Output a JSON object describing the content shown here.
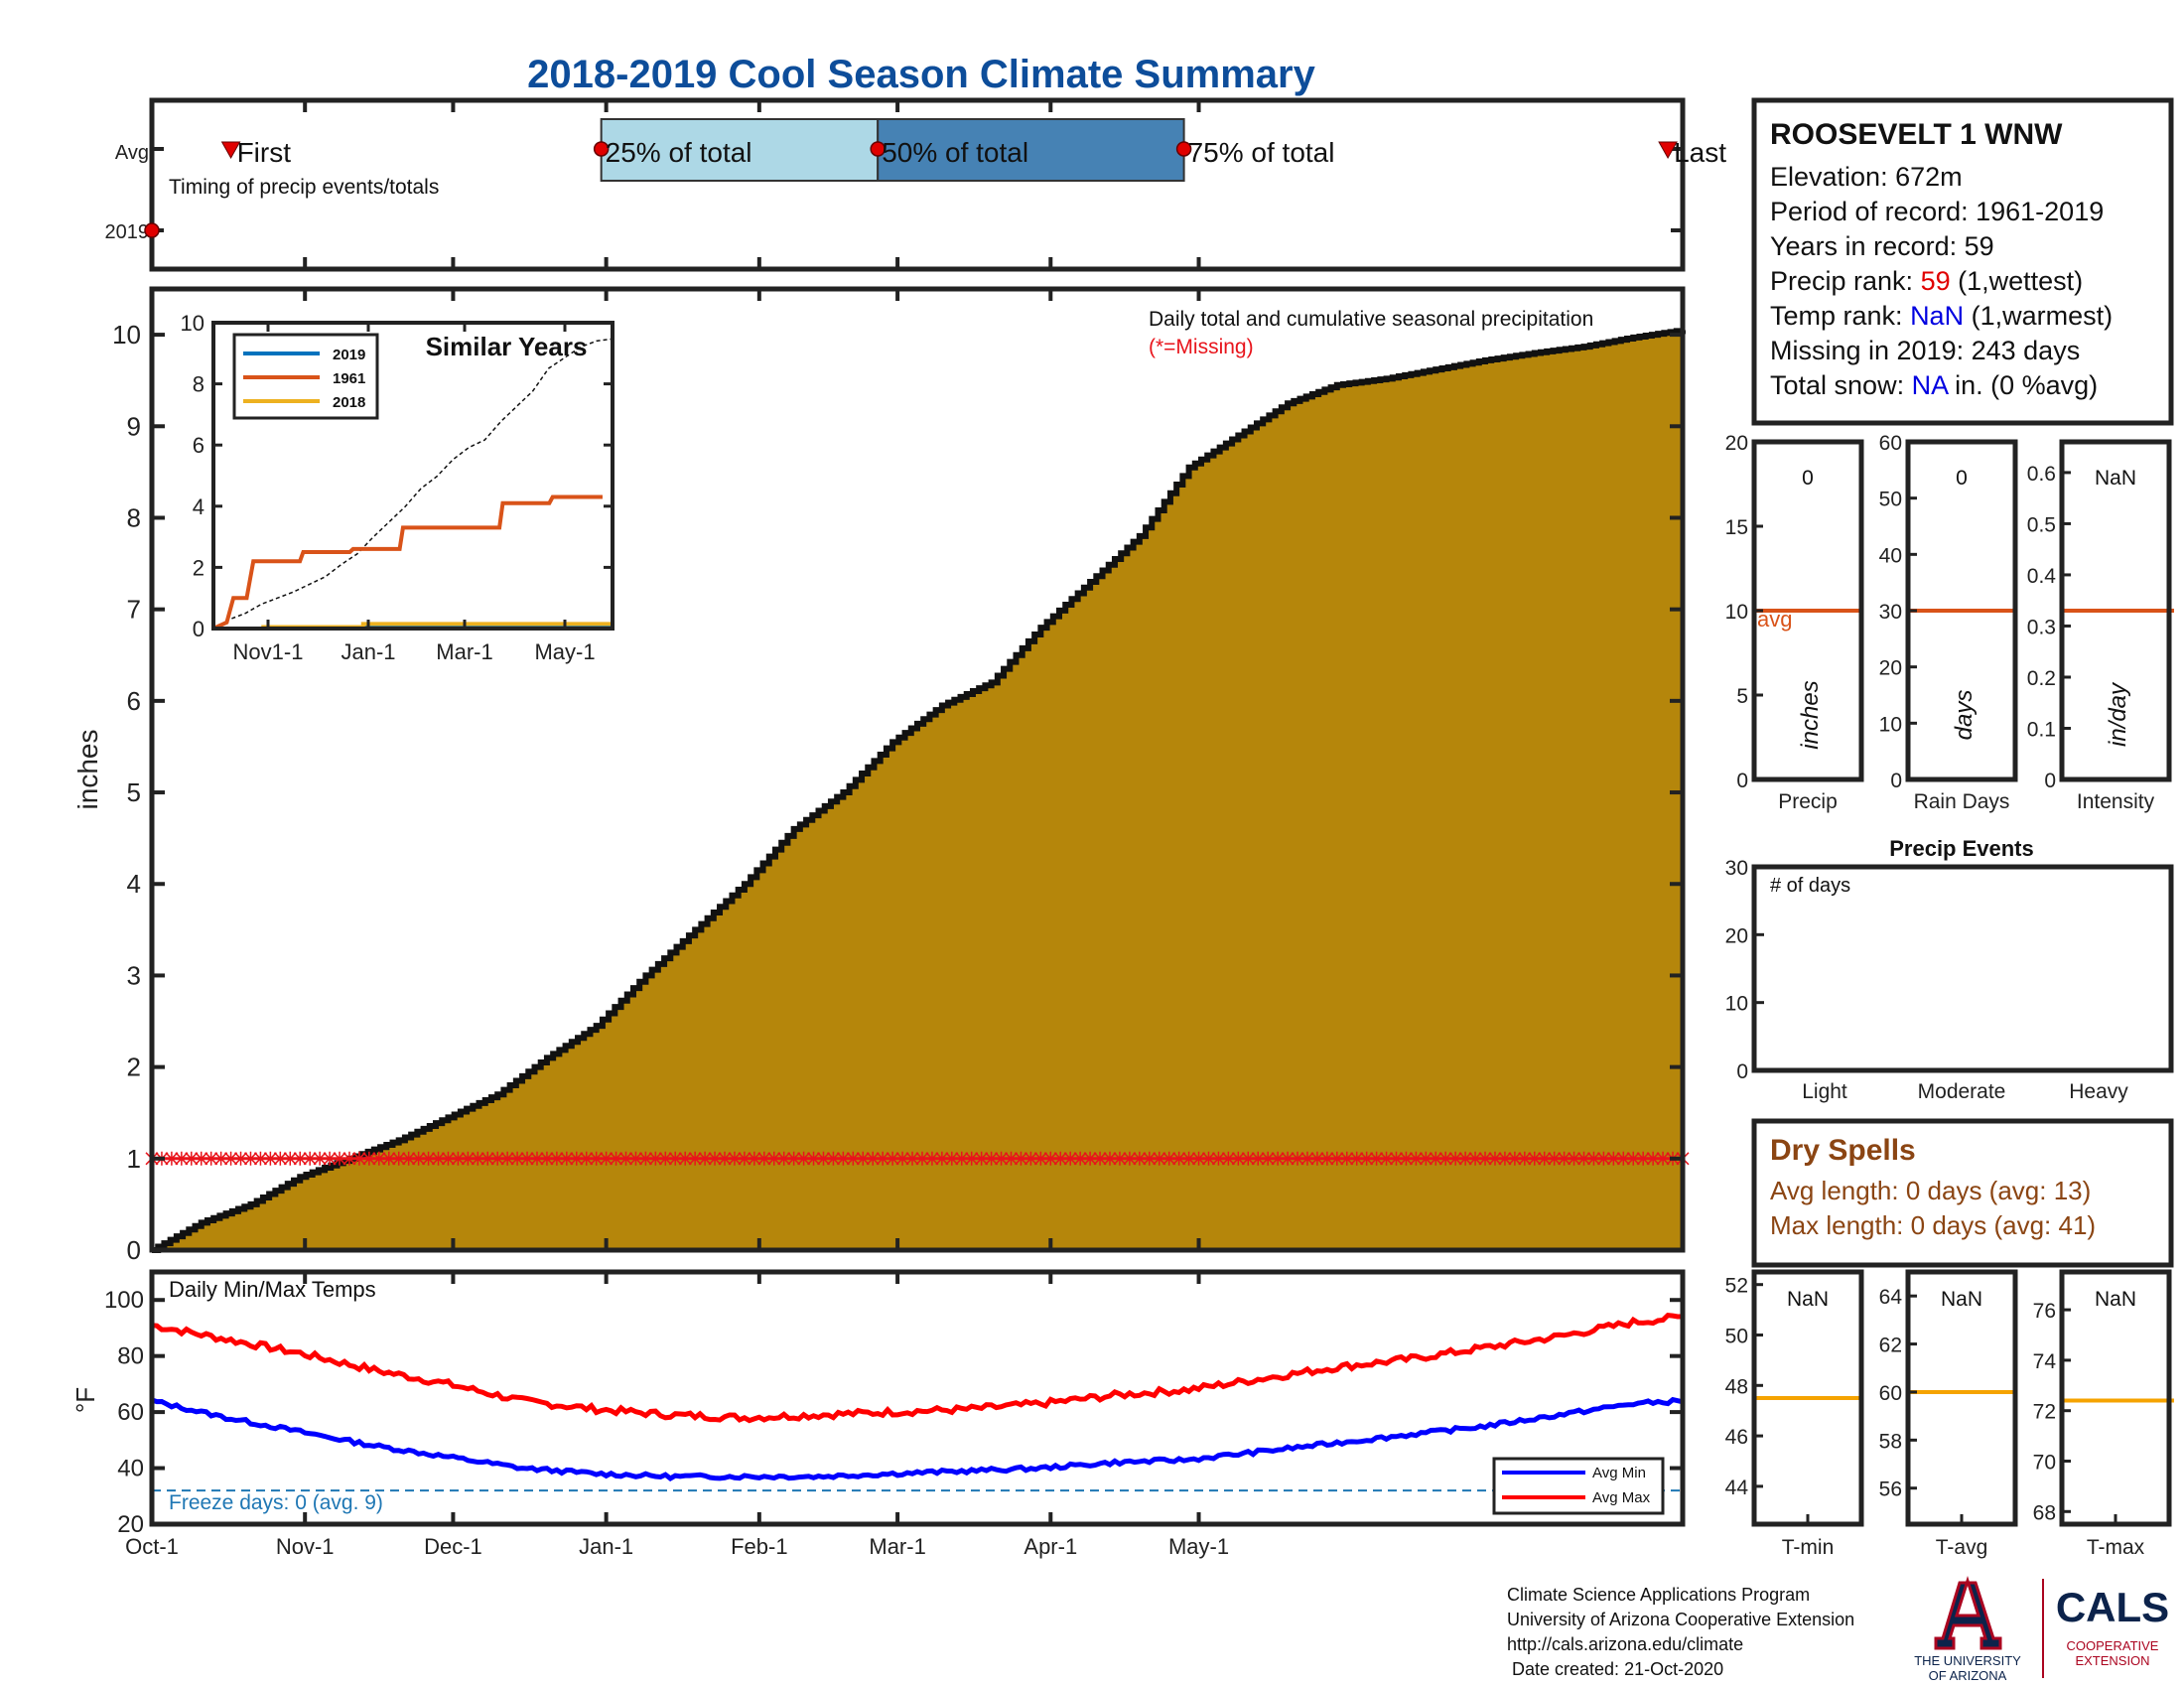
{
  "title": "2018-2019 Cool Season Climate Summary",
  "months": [
    "Oct-1",
    "Nov-1",
    "Dec-1",
    "Jan-1",
    "Feb-1",
    "Mar-1",
    "Apr-1",
    "May-1"
  ],
  "timing": {
    "rows": [
      "Avg",
      "2019"
    ],
    "first_label": "First",
    "last_label": "Last",
    "pct25_label": "25% of total",
    "pct50_label": "50% of total",
    "pct75_label": "75% of total",
    "caption": "Timing of precip events/totals",
    "first_day": 16,
    "pct25_day": 91,
    "pct50_day": 147,
    "pct75_day": 209,
    "last_day": 307,
    "year_marker_day": 0
  },
  "main": {
    "ylabel": "inches",
    "yticks": [
      "0",
      "1",
      "2",
      "3",
      "4",
      "5",
      "6",
      "7",
      "8",
      "9",
      "10"
    ],
    "ylim": [
      0,
      10.5
    ],
    "note": "Daily total and cumulative seasonal precipitation",
    "missing_note": "(*=Missing)",
    "missing_line_value": 1,
    "fill_color": "#b5860b",
    "missing_color": "#e8141b"
  },
  "inset": {
    "title": "Similar Years",
    "yticks": [
      "0",
      "2",
      "4",
      "6",
      "8",
      "10"
    ],
    "xticks": [
      "Nov1-1",
      "Jan-1",
      "Mar-1",
      "May-1"
    ],
    "legend": [
      {
        "label": "2019",
        "color": "#0072bd"
      },
      {
        "label": "1961",
        "color": "#d95319"
      },
      {
        "label": "2018",
        "color": "#edb120"
      }
    ]
  },
  "station": {
    "name": "ROOSEVELT 1 WNW",
    "elevation": "Elevation: 672m",
    "period": "Period of record: 1961-2019",
    "years": "Years in record: 59",
    "precip_rank_prefix": "Precip rank: ",
    "precip_rank_value": "59",
    "precip_rank_suffix": " (1,wettest)",
    "temp_rank_prefix": "Temp rank: ",
    "temp_rank_value": "NaN",
    "temp_rank_suffix": " (1,warmest)",
    "missing": "Missing in 2019: 243 days",
    "snow_prefix": "Total snow: ",
    "snow_value": "NA",
    "snow_suffix": " in. (0 %avg)"
  },
  "mini_precip": [
    {
      "label": "Precip",
      "unit": "inches",
      "value": "0",
      "yticks": [
        "0",
        "5",
        "10",
        "15",
        "20"
      ],
      "ymax": 20,
      "avg": 10,
      "avg_label": "avg"
    },
    {
      "label": "Rain Days",
      "unit": "days",
      "value": "0",
      "yticks": [
        "0",
        "10",
        "20",
        "30",
        "40",
        "50",
        "60"
      ],
      "ymax": 60,
      "avg": 30
    },
    {
      "label": "Intensity",
      "unit": "in/day",
      "value": "NaN",
      "yticks": [
        "0",
        "0.1",
        "0.2",
        "0.3",
        "0.4",
        "0.5",
        "0.6"
      ],
      "ymax": 0.66,
      "avg": 0.33
    }
  ],
  "events": {
    "title": "Precip Events",
    "note": "# of days",
    "yticks": [
      "0",
      "10",
      "20",
      "30"
    ],
    "categories": [
      "Light",
      "Moderate",
      "Heavy"
    ]
  },
  "dry_spells": {
    "title": "Dry Spells",
    "avg_length": "Avg length: 0 days (avg: 13)",
    "max_length": "Max length: 0 days (avg: 41)",
    "color": "#8b4513"
  },
  "temps": {
    "title": "Daily Min/Max Temps",
    "ylabel": "°F",
    "yticks": [
      "20",
      "40",
      "60",
      "80",
      "100"
    ],
    "ylim": [
      20,
      110
    ],
    "freeze_text": "Freeze days: 0 (avg. 9)",
    "freeze_value": 32,
    "legend": [
      {
        "label": "Avg Min",
        "color": "#0000ff"
      },
      {
        "label": "Avg Max",
        "color": "#ff0000"
      }
    ]
  },
  "mini_temp": [
    {
      "label": "T-min",
      "value": "NaN",
      "yticks": [
        "44",
        "46",
        "48",
        "50",
        "52"
      ],
      "ylim": [
        42.5,
        52.5
      ],
      "avg": 47.5
    },
    {
      "label": "T-avg",
      "value": "NaN",
      "yticks": [
        "56",
        "58",
        "60",
        "62",
        "64"
      ],
      "ylim": [
        54.5,
        65
      ],
      "avg": 60
    },
    {
      "label": "T-max",
      "value": "NaN",
      "yticks": [
        "68",
        "70",
        "72",
        "74",
        "76"
      ],
      "ylim": [
        67.5,
        77.5
      ],
      "avg": 72.4
    }
  ],
  "footer": {
    "line1": "Climate Science Applications Program",
    "line2": "University of Arizona Cooperative Extension",
    "line3": "http://cals.arizona.edu/climate",
    "line4": " Date created: 21-Oct-2020",
    "ua_line1": "THE UNIVERSITY",
    "ua_line2": "OF ARIZONA",
    "cals": "CALS",
    "cals_line1": "COOPERATIVE",
    "cals_line2": "EXTENSION"
  },
  "chart_data": [
    {
      "type": "area",
      "title": "Daily total and cumulative seasonal precipitation",
      "ylabel": "inches",
      "ylim": [
        0,
        10.5
      ],
      "x_unit": "days since Oct-1",
      "x": [
        0,
        10,
        20,
        30,
        40,
        50,
        60,
        70,
        80,
        90,
        100,
        110,
        120,
        130,
        140,
        150,
        160,
        170,
        180,
        190,
        200,
        210,
        220,
        230,
        240,
        250,
        260,
        270,
        280,
        290,
        300,
        310
      ],
      "series": [
        {
          "name": "cumulative precipitation",
          "values": [
            0,
            0.3,
            0.5,
            0.8,
            1.0,
            1.2,
            1.45,
            1.7,
            2.1,
            2.45,
            3.0,
            3.5,
            4.0,
            4.6,
            5.0,
            5.55,
            5.95,
            6.2,
            6.8,
            7.3,
            7.8,
            8.55,
            8.9,
            9.25,
            9.45,
            9.52,
            9.62,
            9.72,
            9.8,
            9.87,
            9.97,
            10.05
          ]
        }
      ],
      "annotations": [
        "(*=Missing)"
      ]
    },
    {
      "type": "line",
      "title": "Similar Years",
      "x_unit": "days since Oct-1",
      "x": [
        0,
        30,
        60,
        90,
        120,
        150,
        180,
        210,
        240
      ],
      "ylim": [
        0,
        10
      ],
      "series": [
        {
          "name": "2019",
          "values": [
            0,
            0,
            0.05,
            0.05,
            0.05,
            0.05,
            0.05,
            0.05,
            0.05
          ]
        },
        {
          "name": "1961",
          "values": [
            0,
            2.2,
            2.5,
            2.6,
            3.3,
            3.3,
            4.1,
            4.3,
            4.3
          ]
        },
        {
          "name": "2018",
          "values": [
            0,
            0.05,
            0.05,
            0.15,
            0.15,
            0.15,
            0.15,
            0.15,
            0.15
          ]
        }
      ]
    },
    {
      "type": "line",
      "title": "Daily Min/Max Temps",
      "ylabel": "°F",
      "ylim": [
        20,
        110
      ],
      "x_unit": "days since Oct-1",
      "x": [
        0,
        15,
        30,
        45,
        60,
        75,
        90,
        105,
        120,
        135,
        150,
        165,
        180,
        195,
        210,
        225,
        240,
        255,
        270,
        285,
        300,
        310
      ],
      "series": [
        {
          "name": "Avg Max",
          "values": [
            91,
            86,
            81,
            75,
            70,
            64,
            61,
            59,
            58,
            59,
            60,
            61,
            63,
            66,
            68,
            72,
            76,
            79,
            83,
            87,
            92,
            94
          ]
        },
        {
          "name": "Avg Min",
          "values": [
            64,
            58,
            53,
            48,
            44,
            40,
            38,
            37,
            37,
            37,
            38,
            39,
            40,
            42,
            43,
            46,
            49,
            52,
            55,
            59,
            63,
            64
          ]
        }
      ],
      "annotations": [
        "Freeze days: 0 (avg. 9)"
      ]
    }
  ]
}
